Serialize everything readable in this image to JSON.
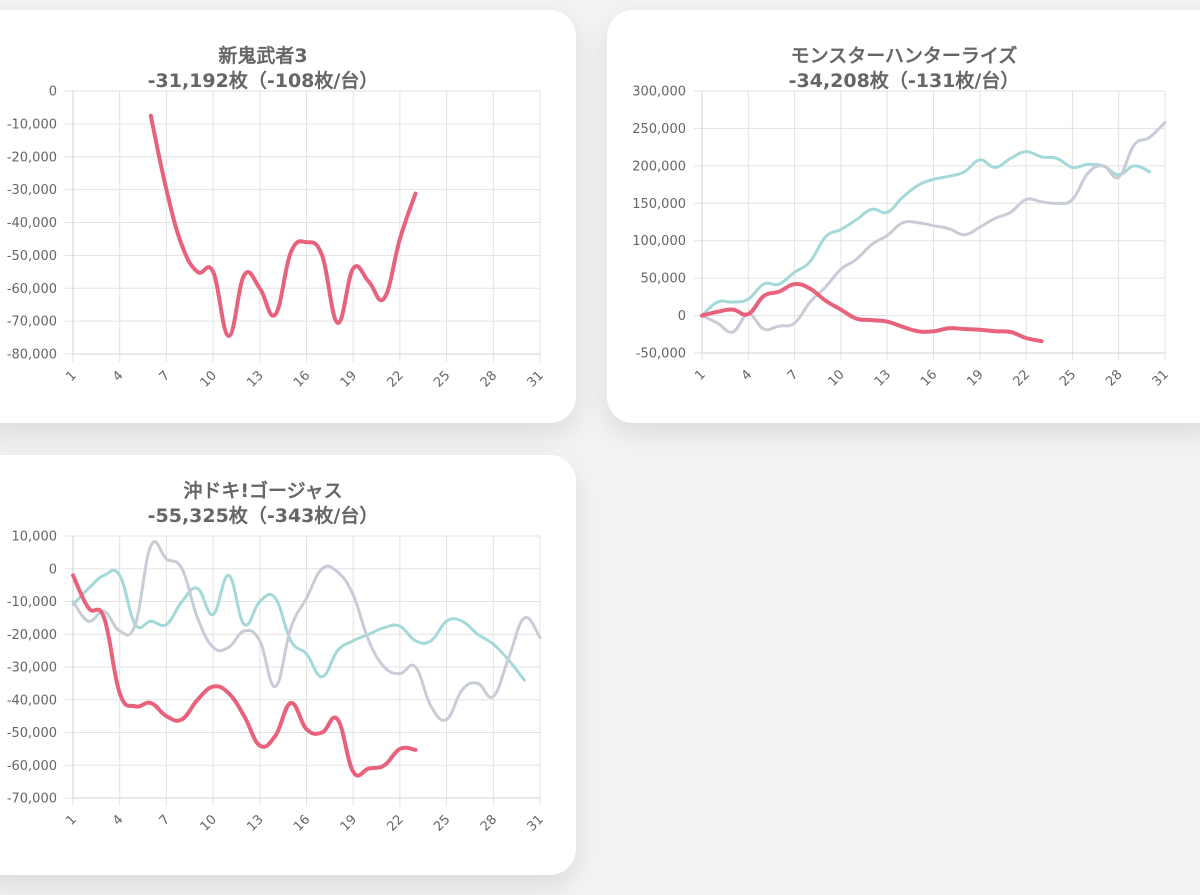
{
  "chart_data": [
    {
      "type": "line",
      "title": "新鬼武者3",
      "subtitle": "-31,192枚（-108枚/台）",
      "ylim": [
        -80000,
        0
      ],
      "yticks": [
        0,
        -10000,
        -20000,
        -30000,
        -40000,
        -50000,
        -60000,
        -70000,
        -80000
      ],
      "ytick_labels": [
        "0",
        "-10,000",
        "-20,000",
        "-30,000",
        "-40,000",
        "-50,000",
        "-60,000",
        "-70,000",
        "-80,000"
      ],
      "xlim": [
        1,
        31
      ],
      "xticks": [
        1,
        4,
        7,
        10,
        13,
        16,
        19,
        22,
        25,
        28,
        31
      ],
      "series": [
        {
          "name": "main",
          "color": "#e8627c",
          "width": 4,
          "x": [
            6,
            7,
            8,
            9,
            10,
            11,
            12,
            13,
            14,
            15,
            16,
            17,
            18,
            19,
            20,
            21,
            22,
            23
          ],
          "values": [
            -7500,
            -30000,
            -47000,
            -55000,
            -55000,
            -74500,
            -56000,
            -60000,
            -68000,
            -49000,
            -46000,
            -50000,
            -70500,
            -54000,
            -58000,
            -63000,
            -45000,
            -31192
          ]
        }
      ]
    },
    {
      "type": "line",
      "title": "モンスターハンターライズ",
      "subtitle": "-34,208枚（-131枚/台）",
      "ylim": [
        -50000,
        300000
      ],
      "yticks": [
        300000,
        250000,
        200000,
        150000,
        100000,
        50000,
        0,
        -50000
      ],
      "ytick_labels": [
        "300,000",
        "250,000",
        "200,000",
        "150,000",
        "100,000",
        "50,000",
        "0",
        "-50,000"
      ],
      "xlim": [
        1,
        31
      ],
      "xticks": [
        1,
        4,
        7,
        10,
        13,
        16,
        19,
        22,
        25,
        28,
        31
      ],
      "series": [
        {
          "name": "teal",
          "color": "#a3d9d8",
          "width": 3,
          "x": [
            1,
            2,
            3,
            4,
            5,
            6,
            7,
            8,
            9,
            10,
            11,
            12,
            13,
            14,
            15,
            16,
            17,
            18,
            19,
            20,
            21,
            22,
            23,
            24,
            25,
            26,
            27,
            28,
            29,
            30
          ],
          "values": [
            0,
            18000,
            18000,
            22000,
            42000,
            42000,
            58000,
            72000,
            105000,
            115000,
            128000,
            142000,
            138000,
            158000,
            174000,
            182000,
            186000,
            192000,
            208000,
            198000,
            210000,
            219000,
            212000,
            210000,
            198000,
            202000,
            200000,
            188000,
            200000,
            192000
          ]
        },
        {
          "name": "gray",
          "color": "#c8ccd6",
          "width": 3,
          "x": [
            1,
            2,
            3,
            4,
            5,
            6,
            7,
            8,
            9,
            10,
            11,
            12,
            13,
            14,
            15,
            16,
            17,
            18,
            19,
            20,
            21,
            22,
            23,
            24,
            25,
            26,
            27,
            28,
            29,
            30,
            31
          ],
          "values": [
            0,
            -10000,
            -22000,
            2000,
            -18000,
            -14000,
            -10000,
            18000,
            38000,
            62000,
            75000,
            95000,
            107000,
            124000,
            124000,
            120000,
            116000,
            108000,
            118000,
            130000,
            138000,
            155000,
            152000,
            150000,
            155000,
            190000,
            200000,
            185000,
            228000,
            238000,
            258000
          ]
        },
        {
          "name": "main",
          "color": "#e8627c",
          "width": 4,
          "x": [
            1,
            2,
            3,
            4,
            5,
            6,
            7,
            8,
            9,
            10,
            11,
            12,
            13,
            14,
            15,
            16,
            17,
            18,
            19,
            20,
            21,
            22,
            23
          ],
          "values": [
            0,
            5000,
            8000,
            2000,
            26000,
            32000,
            42000,
            36000,
            20000,
            8000,
            -4000,
            -6000,
            -8000,
            -15000,
            -21000,
            -21000,
            -17000,
            -18000,
            -19000,
            -21000,
            -22000,
            -30000,
            -34208
          ]
        }
      ]
    },
    {
      "type": "line",
      "title": "沖ドキ!ゴージャス",
      "subtitle": "-55,325枚（-343枚/台）",
      "ylim": [
        -70000,
        10000
      ],
      "yticks": [
        10000,
        0,
        -10000,
        -20000,
        -30000,
        -40000,
        -50000,
        -60000,
        -70000
      ],
      "ytick_labels": [
        "10,000",
        "0",
        "-10,000",
        "-20,000",
        "-30,000",
        "-40,000",
        "-50,000",
        "-60,000",
        "-70,000"
      ],
      "xlim": [
        1,
        31
      ],
      "xticks": [
        1,
        4,
        7,
        10,
        13,
        16,
        19,
        22,
        25,
        28,
        31
      ],
      "series": [
        {
          "name": "teal",
          "color": "#a3d9d8",
          "width": 3,
          "x": [
            1,
            2,
            3,
            4,
            5,
            6,
            7,
            8,
            9,
            10,
            11,
            12,
            13,
            14,
            15,
            16,
            17,
            18,
            19,
            20,
            21,
            22,
            23,
            24,
            25,
            26,
            27,
            28,
            29,
            30
          ],
          "values": [
            -11000,
            -6000,
            -2000,
            -2000,
            -17000,
            -16000,
            -17000,
            -10000,
            -6000,
            -14000,
            -2000,
            -17000,
            -10000,
            -9000,
            -22000,
            -26000,
            -33000,
            -25000,
            -22000,
            -20000,
            -18000,
            -17500,
            -22000,
            -22000,
            -16000,
            -16000,
            -20000,
            -23000,
            -28000,
            -34000
          ]
        },
        {
          "name": "gray",
          "color": "#c8ccd6",
          "width": 3,
          "x": [
            1,
            2,
            3,
            4,
            5,
            6,
            7,
            8,
            9,
            10,
            11,
            12,
            13,
            14,
            15,
            16,
            17,
            18,
            19,
            20,
            21,
            22,
            23,
            24,
            25,
            26,
            27,
            28,
            29,
            30,
            31
          ],
          "values": [
            -10000,
            -16000,
            -13000,
            -19000,
            -17000,
            7000,
            3000,
            0,
            -15000,
            -24000,
            -24000,
            -19000,
            -22000,
            -36000,
            -18000,
            -9000,
            0,
            -1000,
            -8000,
            -22000,
            -30000,
            -32000,
            -30000,
            -42000,
            -46000,
            -37000,
            -35000,
            -39000,
            -27000,
            -15000,
            -21000
          ]
        },
        {
          "name": "main",
          "color": "#e8627c",
          "width": 4,
          "x": [
            1,
            2,
            3,
            4,
            5,
            6,
            7,
            8,
            9,
            10,
            11,
            12,
            13,
            14,
            15,
            16,
            17,
            18,
            19,
            20,
            21,
            22,
            23
          ],
          "values": [
            -2000,
            -12000,
            -15000,
            -38000,
            -42000,
            -41000,
            -45000,
            -46000,
            -40000,
            -36000,
            -38000,
            -45000,
            -54000,
            -51000,
            -41000,
            -49000,
            -50000,
            -46000,
            -62000,
            -61000,
            -60000,
            -55000,
            -55325
          ]
        }
      ]
    }
  ]
}
